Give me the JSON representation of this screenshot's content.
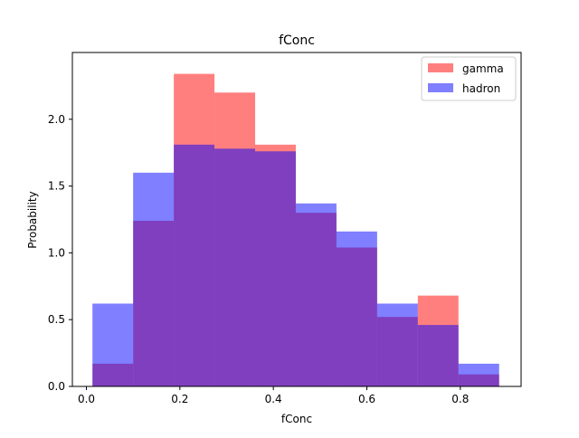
{
  "chart_data": {
    "type": "histogram",
    "title": "fConc",
    "xlabel": "fConc",
    "ylabel": "Probability",
    "xlim": [
      -0.03,
      0.93
    ],
    "ylim": [
      0,
      2.5
    ],
    "xticks": [
      0.0,
      0.2,
      0.4,
      0.6,
      0.8
    ],
    "xtick_labels": [
      "0.0",
      "0.2",
      "0.4",
      "0.6",
      "0.8"
    ],
    "yticks": [
      0.0,
      0.5,
      1.0,
      1.5,
      2.0
    ],
    "ytick_labels": [
      "0.0",
      "0.5",
      "1.0",
      "1.5",
      "2.0"
    ],
    "grid": false,
    "legend_position": "top-right",
    "series": [
      {
        "name": "gamma",
        "color": "#ff0000",
        "alpha": 0.5,
        "bins": [
          {
            "x0": 0.013,
            "x1": 0.1,
            "value": 0.17
          },
          {
            "x0": 0.1,
            "x1": 0.187,
            "value": 1.24
          },
          {
            "x0": 0.187,
            "x1": 0.274,
            "value": 2.34
          },
          {
            "x0": 0.274,
            "x1": 0.361,
            "value": 2.2
          },
          {
            "x0": 0.361,
            "x1": 0.448,
            "value": 1.81
          },
          {
            "x0": 0.448,
            "x1": 0.535,
            "value": 1.3
          },
          {
            "x0": 0.535,
            "x1": 0.622,
            "value": 1.04
          },
          {
            "x0": 0.622,
            "x1": 0.709,
            "value": 0.52
          },
          {
            "x0": 0.709,
            "x1": 0.796,
            "value": 0.68
          },
          {
            "x0": 0.796,
            "x1": 0.883,
            "value": 0.09
          }
        ]
      },
      {
        "name": "hadron",
        "color": "#0000ff",
        "alpha": 0.5,
        "bins": [
          {
            "x0": 0.013,
            "x1": 0.1,
            "value": 0.62
          },
          {
            "x0": 0.1,
            "x1": 0.187,
            "value": 1.6
          },
          {
            "x0": 0.187,
            "x1": 0.274,
            "value": 1.81
          },
          {
            "x0": 0.274,
            "x1": 0.361,
            "value": 1.78
          },
          {
            "x0": 0.361,
            "x1": 0.448,
            "value": 1.76
          },
          {
            "x0": 0.448,
            "x1": 0.535,
            "value": 1.37
          },
          {
            "x0": 0.535,
            "x1": 0.622,
            "value": 1.16
          },
          {
            "x0": 0.622,
            "x1": 0.709,
            "value": 0.62
          },
          {
            "x0": 0.709,
            "x1": 0.796,
            "value": 0.46
          },
          {
            "x0": 0.796,
            "x1": 0.883,
            "value": 0.17
          }
        ]
      }
    ]
  }
}
